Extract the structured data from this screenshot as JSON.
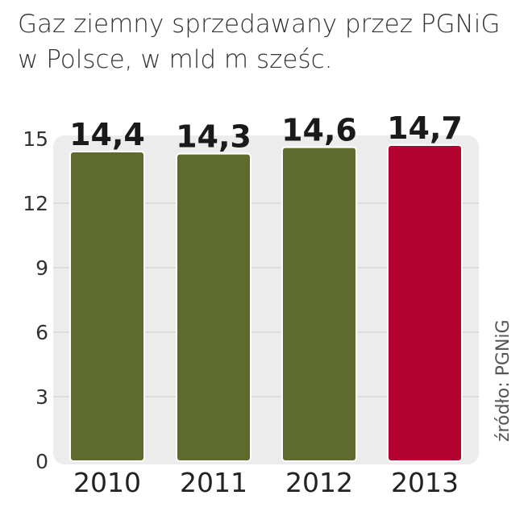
{
  "chart_data": {
    "type": "bar",
    "title": "Gaz ziemny sprzedawany przez PGNiG",
    "subtitle": "w Polsce, w mld m sześc.",
    "categories": [
      "2010",
      "2011",
      "2012",
      "2013"
    ],
    "values": [
      14.4,
      14.3,
      14.6,
      14.7
    ],
    "value_labels": [
      "14,4",
      "14,3",
      "14,6",
      "14,7"
    ],
    "y_ticks": [
      "0",
      "3",
      "6",
      "9",
      "12",
      "15"
    ],
    "ylim": [
      0,
      15
    ],
    "grid": true,
    "xlabel": "",
    "ylabel": "",
    "colors": {
      "bar": "#5f6a2f",
      "highlight": "#b2002f",
      "highlight_index": 3,
      "plot_background": "#ececec",
      "gridline": "#d6d6d6"
    }
  },
  "source": "źródło: PGNiG"
}
